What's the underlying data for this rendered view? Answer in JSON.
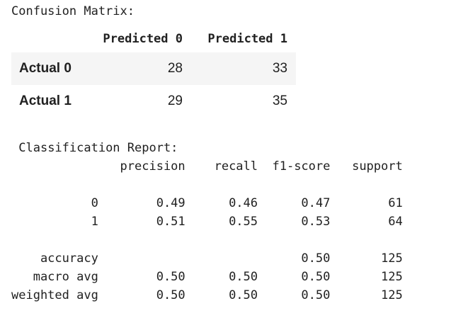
{
  "confusion_matrix": {
    "title": "Confusion Matrix:",
    "columns": [
      "Predicted 0",
      "Predicted 1"
    ],
    "rows": [
      {
        "label": "Actual 0",
        "values": [
          "28",
          "33"
        ]
      },
      {
        "label": "Actual 1",
        "values": [
          "29",
          "35"
        ]
      }
    ]
  },
  "classification_report": {
    "title": "Classification Report:",
    "columns": [
      "precision",
      "recall",
      "f1-score",
      "support"
    ],
    "rows": [
      {
        "label": "0",
        "precision": "0.49",
        "recall": "0.46",
        "f1": "0.47",
        "support": "61"
      },
      {
        "label": "1",
        "precision": "0.51",
        "recall": "0.55",
        "f1": "0.53",
        "support": "64"
      }
    ],
    "summary": [
      {
        "label": "accuracy",
        "precision": "",
        "recall": "",
        "f1": "0.50",
        "support": "125"
      },
      {
        "label": "macro avg",
        "precision": "0.50",
        "recall": "0.50",
        "f1": "0.50",
        "support": "125"
      },
      {
        "label": "weighted avg",
        "precision": "0.50",
        "recall": "0.50",
        "f1": "0.50",
        "support": "125"
      }
    ]
  }
}
